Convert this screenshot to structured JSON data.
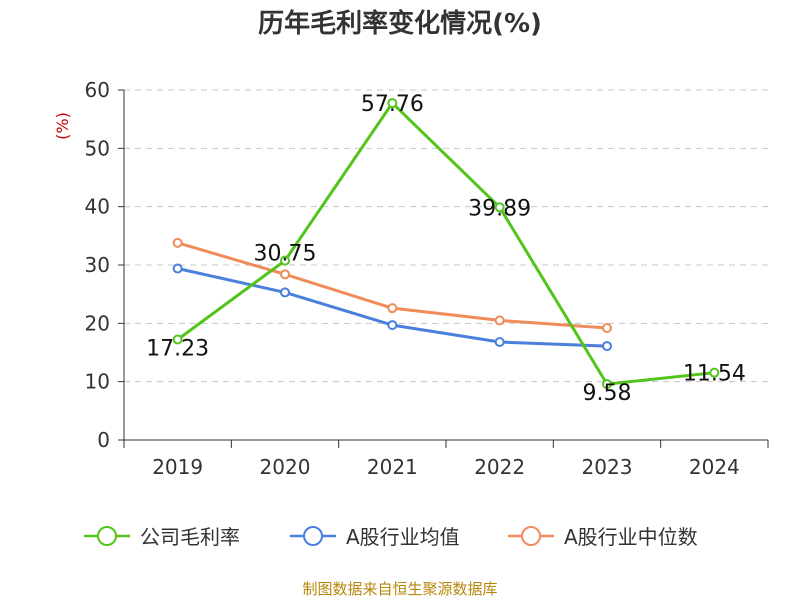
{
  "chart_data": {
    "type": "line",
    "title": "历年毛利率变化情况(%)",
    "ylabel": "(%)",
    "xlabel": "",
    "categories": [
      "2019",
      "2020",
      "2021",
      "2022",
      "2023",
      "2024"
    ],
    "ylim": [
      0,
      60
    ],
    "yticks": [
      0,
      10,
      20,
      30,
      40,
      50,
      60
    ],
    "grid": true,
    "legend_position": "bottom",
    "series": [
      {
        "name": "公司毛利率",
        "color": "#52c41a",
        "values": [
          17.23,
          30.75,
          57.76,
          39.89,
          9.58,
          11.54
        ],
        "labels": [
          "17.23",
          "30.75",
          "57.76",
          "39.89",
          "9.58",
          "11.54"
        ]
      },
      {
        "name": "A股行业均值",
        "color": "#4a7fdc",
        "values": [
          29.4,
          25.3,
          19.7,
          16.8,
          16.1,
          null
        ]
      },
      {
        "name": "A股行业中位数",
        "color": "#f08c5a",
        "values": [
          33.8,
          28.4,
          22.6,
          20.5,
          19.2,
          null
        ]
      }
    ]
  },
  "source_text": "制图数据来自恒生聚源数据库"
}
